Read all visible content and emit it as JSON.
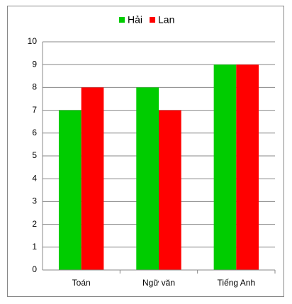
{
  "chart_data": {
    "type": "bar",
    "categories": [
      "Toán",
      "Ngữ văn",
      "Tiếng Anh"
    ],
    "series": [
      {
        "name": "Hải",
        "color": "#00cc00",
        "values": [
          7,
          8,
          9
        ]
      },
      {
        "name": "Lan",
        "color": "#ff0000",
        "values": [
          8,
          7,
          9
        ]
      }
    ],
    "ylim": [
      0,
      10
    ],
    "yticks": [
      0,
      1,
      2,
      3,
      4,
      5,
      6,
      7,
      8,
      9,
      10
    ],
    "grid": true,
    "legend": "top"
  }
}
